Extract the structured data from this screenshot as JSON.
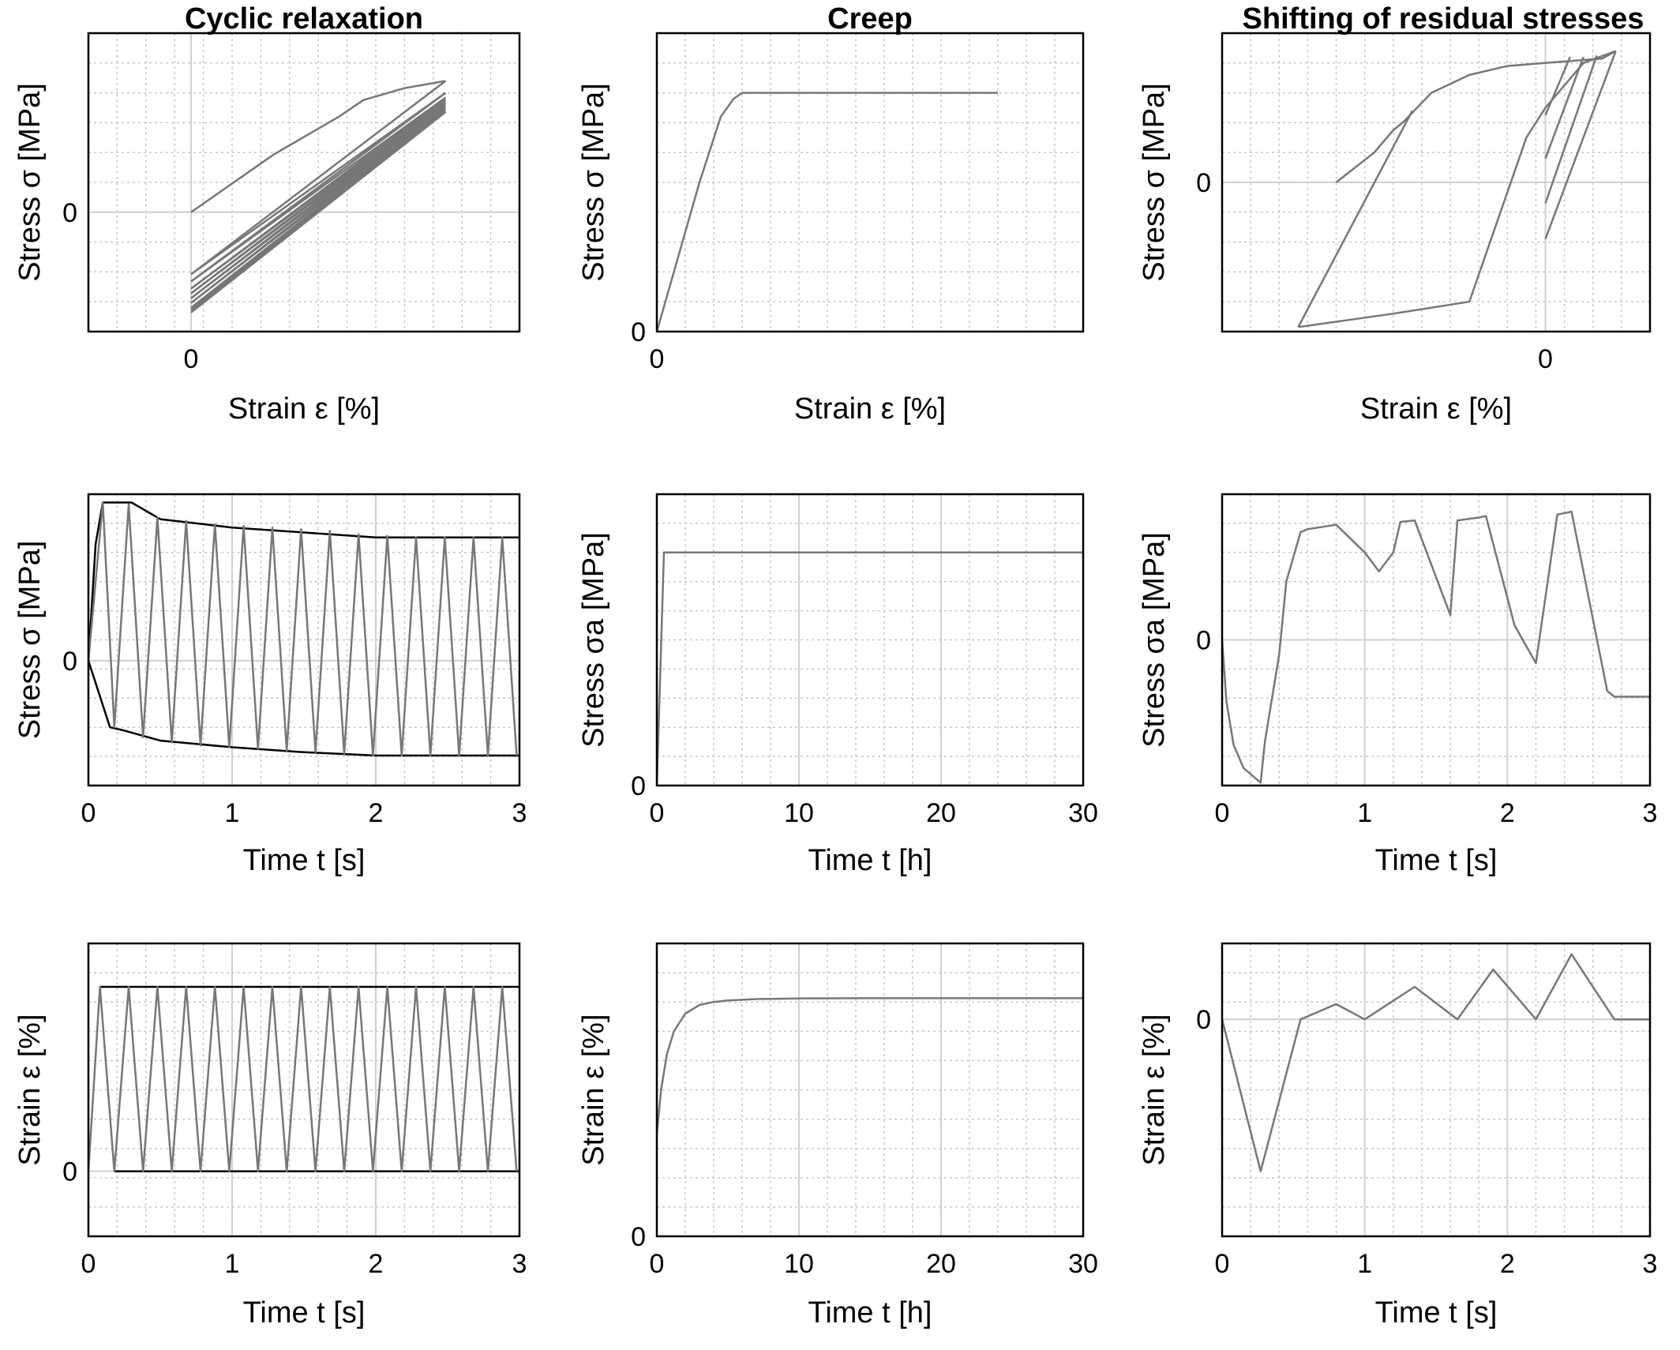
{
  "columns": [
    "Cyclic relaxation",
    "Creep",
    "Shifting of residual stresses"
  ],
  "panels": [
    {
      "id": "cr-stress-strain",
      "xlabel": "Strain ε [%]",
      "ylabel": "Stress σ [MPa]",
      "xticks": [
        {
          "v": 0,
          "label": "0"
        }
      ],
      "yticks": [
        {
          "v": 0,
          "label": "0"
        }
      ]
    },
    {
      "id": "cp-stress-strain",
      "xlabel": "Strain ε [%]",
      "ylabel": "Stress σ [MPa]",
      "xticks": [
        {
          "v": 0,
          "label": "0"
        }
      ],
      "yticks": [
        {
          "v": 0,
          "label": "0"
        }
      ]
    },
    {
      "id": "sr-stress-strain",
      "xlabel": "Strain ε [%]",
      "ylabel": "Stress σ [MPa]",
      "xticks": [
        {
          "v": 0,
          "label": "0"
        }
      ],
      "yticks": [
        {
          "v": 0,
          "label": "0"
        }
      ]
    },
    {
      "id": "cr-stress-time",
      "xlabel": "Time t [s]",
      "ylabel": "Stress σ [MPa]",
      "xticks": [
        {
          "v": 0,
          "label": "0"
        },
        {
          "v": 1,
          "label": "1"
        },
        {
          "v": 2,
          "label": "2"
        },
        {
          "v": 3,
          "label": "3"
        }
      ],
      "yticks": [
        {
          "v": 0,
          "label": "0"
        }
      ]
    },
    {
      "id": "cp-stress-time",
      "xlabel": "Time t [h]",
      "ylabel": "Stress σa [MPa]",
      "xticks": [
        {
          "v": 0,
          "label": "0"
        },
        {
          "v": 10,
          "label": "10"
        },
        {
          "v": 20,
          "label": "20"
        },
        {
          "v": 30,
          "label": "30"
        }
      ],
      "yticks": [
        {
          "v": 0,
          "label": "0"
        }
      ]
    },
    {
      "id": "sr-stress-time",
      "xlabel": "Time t [s]",
      "ylabel": "Stress σa [MPa]",
      "xticks": [
        {
          "v": 0,
          "label": "0"
        },
        {
          "v": 1,
          "label": "1"
        },
        {
          "v": 2,
          "label": "2"
        },
        {
          "v": 3,
          "label": "3"
        }
      ],
      "yticks": [
        {
          "v": 0,
          "label": "0"
        }
      ]
    },
    {
      "id": "cr-strain-time",
      "xlabel": "Time t [s]",
      "ylabel": "Strain ε [%]",
      "xticks": [
        {
          "v": 0,
          "label": "0"
        },
        {
          "v": 1,
          "label": "1"
        },
        {
          "v": 2,
          "label": "2"
        },
        {
          "v": 3,
          "label": "3"
        }
      ],
      "yticks": [
        {
          "v": 0,
          "label": "0"
        }
      ]
    },
    {
      "id": "cp-strain-time",
      "xlabel": "Time t [h]",
      "ylabel": "Strain ε [%]",
      "xticks": [
        {
          "v": 0,
          "label": "0"
        },
        {
          "v": 10,
          "label": "10"
        },
        {
          "v": 20,
          "label": "20"
        },
        {
          "v": 30,
          "label": "30"
        }
      ],
      "yticks": [
        {
          "v": 0,
          "label": "0"
        }
      ]
    },
    {
      "id": "sr-strain-time",
      "xlabel": "Time t [s]",
      "ylabel": "Strain ε [%]",
      "xticks": [
        {
          "v": 0,
          "label": "0"
        },
        {
          "v": 1,
          "label": "1"
        },
        {
          "v": 2,
          "label": "2"
        },
        {
          "v": 3,
          "label": "3"
        }
      ],
      "yticks": [
        {
          "v": 0,
          "label": "0"
        }
      ]
    }
  ],
  "chart_data": [
    {
      "type": "line",
      "title": "Cyclic relaxation",
      "xlabel": "Strain ε [%]",
      "ylabel": "Stress σ [MPa]",
      "xlim": [
        -0.25,
        0.8
      ],
      "ylim": [
        -0.5,
        0.75
      ],
      "grid": true,
      "series": [
        {
          "x": [
            0,
            0.2,
            0.36,
            0.42,
            0.52,
            0.62
          ],
          "y": [
            0,
            0.24,
            0.4,
            0.47,
            0.52,
            0.55
          ]
        },
        {
          "x": [
            0.62,
            0
          ],
          "y": [
            0.55,
            -0.26
          ]
        },
        {
          "x": [
            0,
            0.62
          ],
          "y": [
            -0.26,
            0.5
          ]
        },
        {
          "x": [
            0.62,
            0
          ],
          "y": [
            0.5,
            -0.29
          ]
        },
        {
          "x": [
            0,
            0.62
          ],
          "y": [
            -0.29,
            0.48
          ]
        },
        {
          "x": [
            0.62,
            0
          ],
          "y": [
            0.48,
            -0.32
          ]
        },
        {
          "x": [
            0,
            0.62
          ],
          "y": [
            -0.32,
            0.47
          ]
        },
        {
          "x": [
            0.62,
            0
          ],
          "y": [
            0.47,
            -0.34
          ]
        },
        {
          "x": [
            0,
            0.62
          ],
          "y": [
            -0.34,
            0.46
          ]
        },
        {
          "x": [
            0.62,
            0
          ],
          "y": [
            0.46,
            -0.36
          ]
        },
        {
          "x": [
            0,
            0.62
          ],
          "y": [
            -0.36,
            0.45
          ]
        },
        {
          "x": [
            0.62,
            0
          ],
          "y": [
            0.45,
            -0.38
          ]
        },
        {
          "x": [
            0,
            0.62
          ],
          "y": [
            -0.38,
            0.44
          ]
        },
        {
          "x": [
            0.62,
            0
          ],
          "y": [
            0.44,
            -0.4
          ]
        },
        {
          "x": [
            0,
            0.62
          ],
          "y": [
            -0.4,
            0.43
          ]
        },
        {
          "x": [
            0.62,
            0
          ],
          "y": [
            0.43,
            -0.41
          ]
        },
        {
          "x": [
            0,
            0.62
          ],
          "y": [
            -0.41,
            0.42
          ]
        },
        {
          "x": [
            0.62,
            0
          ],
          "y": [
            0.42,
            -0.42
          ]
        }
      ]
    },
    {
      "type": "line",
      "title": "Creep",
      "xlabel": "Strain ε [%]",
      "ylabel": "Stress σ [MPa]",
      "xlim": [
        0,
        1
      ],
      "ylim": [
        0,
        1
      ],
      "grid": true,
      "series": [
        {
          "x": [
            0,
            0.1,
            0.15,
            0.18,
            0.19,
            0.2,
            0.8
          ],
          "y": [
            0,
            0.5,
            0.72,
            0.78,
            0.79,
            0.8,
            0.8
          ]
        }
      ]
    },
    {
      "type": "line",
      "title": "Shifting of residual stresses",
      "xlabel": "Strain ε [%]",
      "ylabel": "Stress σ [MPa]",
      "xlim": [
        -1.7,
        0.55
      ],
      "ylim": [
        -1.0,
        1.0
      ],
      "grid": true,
      "series": [
        {
          "x": [
            -1.1,
            -0.9,
            -0.8,
            -0.75,
            -0.6,
            -0.4,
            -0.2,
            0,
            0.1,
            0.2,
            0.3,
            0.37
          ],
          "y": [
            0,
            0.2,
            0.35,
            0.4,
            0.6,
            0.72,
            0.78,
            0.8,
            0.81,
            0.82,
            0.83,
            0.88
          ]
        },
        {
          "x": [
            0.37,
            0.2,
            0,
            -0.1,
            -0.4,
            -0.8,
            -1.3
          ],
          "y": [
            0.88,
            0.8,
            0.5,
            0.3,
            -0.8,
            -0.88,
            -0.97
          ]
        },
        {
          "x": [
            -1.3,
            -0.7
          ],
          "y": [
            -0.97,
            0.48
          ]
        },
        {
          "x": [
            0,
            0.13
          ],
          "y": [
            0.45,
            0.84
          ]
        },
        {
          "x": [
            0,
            0.2
          ],
          "y": [
            0.16,
            0.84
          ]
        },
        {
          "x": [
            0,
            0.27
          ],
          "y": [
            -0.14,
            0.85
          ]
        },
        {
          "x": [
            0,
            0.37
          ],
          "y": [
            -0.38,
            0.88
          ]
        }
      ]
    },
    {
      "type": "line",
      "title": "Cyclic relaxation",
      "xlabel": "Time t [s]",
      "ylabel": "Stress σ [MPa]",
      "xlim": [
        0,
        3
      ],
      "ylim": [
        -0.75,
        1.0
      ],
      "grid": true,
      "series": [
        {
          "x": [
            0,
            0.05,
            0.1,
            0.3,
            0.5,
            1.0,
            1.5,
            2.0,
            2.5,
            3.0
          ],
          "y": [
            0,
            0.7,
            0.95,
            0.95,
            0.85,
            0.8,
            0.77,
            0.74,
            0.74,
            0.74
          ]
        },
        {
          "x": [
            0,
            0.15,
            0.25,
            0.5,
            1.0,
            1.5,
            2.0,
            2.5,
            3.0
          ],
          "y": [
            0,
            -0.4,
            -0.42,
            -0.48,
            -0.52,
            -0.55,
            -0.57,
            -0.57,
            -0.57
          ]
        },
        {
          "x": [
            0,
            0.1,
            0.18,
            0.28,
            0.38,
            0.48,
            0.58,
            0.68,
            0.78,
            0.88,
            0.98,
            1.08,
            1.18,
            1.28,
            1.38,
            1.48,
            1.58,
            1.68,
            1.78,
            1.88,
            1.98,
            2.08,
            2.18,
            2.28,
            2.38,
            2.48,
            2.58,
            2.68,
            2.78,
            2.88,
            2.98
          ],
          "y": [
            0,
            0.95,
            -0.4,
            0.94,
            -0.46,
            0.86,
            -0.49,
            0.84,
            -0.51,
            0.82,
            -0.52,
            0.81,
            -0.53,
            0.8,
            -0.54,
            0.79,
            -0.55,
            0.78,
            -0.56,
            0.76,
            -0.57,
            0.75,
            -0.57,
            0.74,
            -0.57,
            0.74,
            -0.57,
            0.74,
            -0.57,
            0.74,
            -0.57
          ]
        }
      ]
    },
    {
      "type": "line",
      "title": "Creep",
      "xlabel": "Time t [h]",
      "ylabel": "Stress σa [MPa]",
      "xlim": [
        0,
        30
      ],
      "ylim": [
        0,
        1
      ],
      "grid": true,
      "series": [
        {
          "x": [
            0,
            0.5,
            30
          ],
          "y": [
            0,
            0.8,
            0.8
          ]
        }
      ]
    },
    {
      "type": "line",
      "title": "Shifting of residual stresses",
      "xlabel": "Time t [s]",
      "ylabel": "Stress σa [MPa]",
      "xlim": [
        0,
        3
      ],
      "ylim": [
        -1.0,
        1.0
      ],
      "grid": true,
      "series": [
        {
          "x": [
            0,
            0.03,
            0.08,
            0.15,
            0.27,
            0.3,
            0.4,
            0.45,
            0.55,
            0.6,
            0.8,
            1.0,
            1.1,
            1.2,
            1.25,
            1.35,
            1.6,
            1.65,
            1.8,
            1.85,
            2.05,
            2.2,
            2.35,
            2.45,
            2.7,
            2.75,
            3.0
          ],
          "y": [
            0,
            -0.42,
            -0.72,
            -0.88,
            -0.98,
            -0.7,
            -0.1,
            0.4,
            0.74,
            0.76,
            0.79,
            0.6,
            0.47,
            0.6,
            0.81,
            0.82,
            0.17,
            0.82,
            0.84,
            0.85,
            0.1,
            -0.16,
            0.86,
            0.88,
            -0.35,
            -0.39,
            -0.39
          ]
        }
      ]
    },
    {
      "type": "line",
      "title": "Cyclic relaxation",
      "xlabel": "Time t [s]",
      "ylabel": "Strain ε [%]",
      "xlim": [
        0,
        3
      ],
      "ylim": [
        -0.3,
        1.05
      ],
      "grid": true,
      "series": [
        {
          "x": [
            0.08,
            3.0
          ],
          "y": [
            0.85,
            0.85
          ]
        },
        {
          "x": [
            0.18,
            3.0
          ],
          "y": [
            0,
            0
          ]
        },
        {
          "x": [
            0,
            0.08,
            0.18,
            0.28,
            0.38,
            0.48,
            0.58,
            0.68,
            0.78,
            0.88,
            0.98,
            1.08,
            1.18,
            1.28,
            1.38,
            1.48,
            1.58,
            1.68,
            1.78,
            1.88,
            1.98,
            2.08,
            2.18,
            2.28,
            2.38,
            2.48,
            2.58,
            2.68,
            2.78,
            2.88,
            2.98
          ],
          "y": [
            0,
            0.85,
            0,
            0.85,
            0,
            0.85,
            0,
            0.85,
            0,
            0.85,
            0,
            0.85,
            0,
            0.85,
            0,
            0.85,
            0,
            0.85,
            0,
            0.85,
            0,
            0.85,
            0,
            0.85,
            0,
            0.85,
            0,
            0.85,
            0,
            0.85,
            0
          ]
        }
      ]
    },
    {
      "type": "line",
      "title": "Creep",
      "xlabel": "Time t [h]",
      "ylabel": "Strain ε [%]",
      "xlim": [
        0,
        30
      ],
      "ylim": [
        0,
        1
      ],
      "grid": true,
      "series": [
        {
          "x": [
            0,
            0.3,
            0.7,
            1.2,
            2,
            3,
            4,
            5,
            7,
            10,
            15,
            20,
            30
          ],
          "y": [
            0.35,
            0.5,
            0.62,
            0.7,
            0.76,
            0.79,
            0.8,
            0.805,
            0.81,
            0.812,
            0.813,
            0.813,
            0.813
          ]
        }
      ]
    },
    {
      "type": "line",
      "title": "Shifting of residual stresses",
      "xlabel": "Time t [s]",
      "ylabel": "Strain ε [%]",
      "xlim": [
        0,
        3
      ],
      "ylim": [
        -1.0,
        0.35
      ],
      "grid": true,
      "series": [
        {
          "x": [
            0,
            0.27,
            0.55,
            0.8,
            1.0,
            1.35,
            1.65,
            1.9,
            2.2,
            2.45,
            2.75,
            3.0
          ],
          "y": [
            0,
            -0.7,
            0,
            0.07,
            0,
            0.15,
            0,
            0.23,
            0,
            0.3,
            0,
            0
          ]
        }
      ]
    }
  ]
}
